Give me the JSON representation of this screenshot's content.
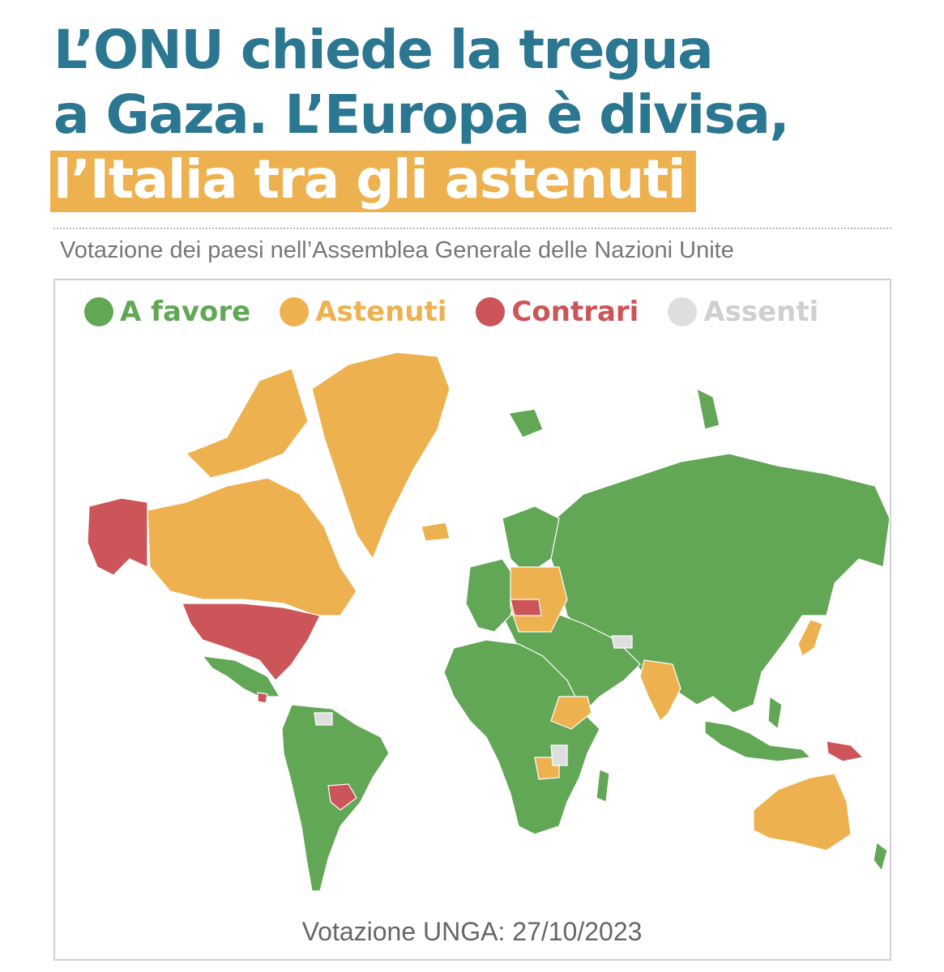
{
  "title": {
    "line1": "L’ONU chiede la tregua",
    "line2": "a Gaza. L’Europa è divisa,",
    "line3": "l’Italia tra gli astenuti"
  },
  "subtitle": "Votazione dei paesi nell’Assemblea Generale delle Nazioni Unite",
  "legend": {
    "favor": {
      "label": "A favore",
      "color": "#62a756"
    },
    "abstain": {
      "label": "Astenuti",
      "color": "#eeb14f"
    },
    "against": {
      "label": "Contrari",
      "color": "#cc5559"
    },
    "absent": {
      "label": "Assenti",
      "color": "#dedede"
    }
  },
  "footer": "Votazione UNGA: 27/10/2023"
}
